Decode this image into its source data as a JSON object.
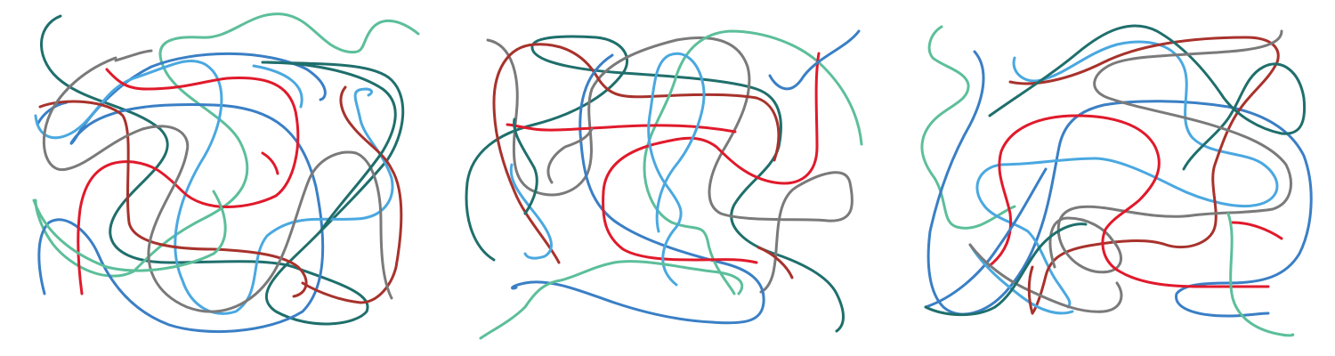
{
  "palette": {
    "steel_blue": "#3a7fc5",
    "sky_blue": "#4aa8e0",
    "red": "#e01a2b",
    "dark_red": "#a8322c",
    "teal": "#1f6f6c",
    "mint": "#5cbf9a",
    "gray": "#7a7a7a"
  },
  "panels": [
    {
      "name": "panel-left",
      "strokes": [
        {
          "name": "teal-strand-1",
          "color": "teal"
        },
        {
          "name": "mint-strand-1",
          "color": "mint"
        },
        {
          "name": "steel-blue-strand-1",
          "color": "steel_blue"
        },
        {
          "name": "steel-blue-strand-2",
          "color": "steel_blue"
        },
        {
          "name": "sky-blue-strand-1",
          "color": "sky_blue"
        },
        {
          "name": "sky-blue-strand-2",
          "color": "sky_blue"
        },
        {
          "name": "red-strand-1",
          "color": "red"
        },
        {
          "name": "red-strand-2",
          "color": "red"
        },
        {
          "name": "dark-red-strand-1",
          "color": "dark_red"
        },
        {
          "name": "dark-red-strand-2",
          "color": "dark_red"
        },
        {
          "name": "gray-strand-1",
          "color": "gray"
        },
        {
          "name": "gray-strand-2",
          "color": "gray"
        },
        {
          "name": "teal-strand-2",
          "color": "teal"
        },
        {
          "name": "mint-strand-2",
          "color": "mint"
        }
      ]
    },
    {
      "name": "panel-middle",
      "strokes": [
        {
          "name": "teal-strand-1",
          "color": "teal"
        },
        {
          "name": "gray-strand-1",
          "color": "gray"
        },
        {
          "name": "dark-red-strand-1",
          "color": "dark_red"
        },
        {
          "name": "steel-blue-strand-1",
          "color": "steel_blue"
        },
        {
          "name": "mint-strand-1",
          "color": "mint"
        },
        {
          "name": "sky-blue-strand-1",
          "color": "sky_blue"
        },
        {
          "name": "red-strand-1",
          "color": "red"
        },
        {
          "name": "red-strand-2",
          "color": "red"
        },
        {
          "name": "dark-red-strand-2",
          "color": "dark_red"
        },
        {
          "name": "teal-strand-2",
          "color": "teal"
        },
        {
          "name": "gray-strand-2",
          "color": "gray"
        },
        {
          "name": "sky-blue-strand-2",
          "color": "sky_blue"
        },
        {
          "name": "steel-blue-strand-2",
          "color": "steel_blue"
        },
        {
          "name": "mint-strand-2",
          "color": "mint"
        }
      ]
    },
    {
      "name": "panel-right",
      "strokes": [
        {
          "name": "mint-strand-1",
          "color": "mint"
        },
        {
          "name": "steel-blue-strand-1",
          "color": "steel_blue"
        },
        {
          "name": "sky-blue-strand-1",
          "color": "sky_blue"
        },
        {
          "name": "dark-red-strand-1",
          "color": "dark_red"
        },
        {
          "name": "teal-strand-1",
          "color": "teal"
        },
        {
          "name": "gray-strand-1",
          "color": "gray"
        },
        {
          "name": "red-strand-1",
          "color": "red"
        },
        {
          "name": "steel-blue-strand-2",
          "color": "steel_blue"
        },
        {
          "name": "sky-blue-strand-2",
          "color": "sky_blue"
        },
        {
          "name": "gray-strand-2",
          "color": "gray"
        },
        {
          "name": "dark-red-strand-2",
          "color": "dark_red"
        },
        {
          "name": "teal-strand-2",
          "color": "teal"
        },
        {
          "name": "red-strand-2",
          "color": "red"
        },
        {
          "name": "mint-strand-2",
          "color": "mint"
        }
      ]
    }
  ]
}
